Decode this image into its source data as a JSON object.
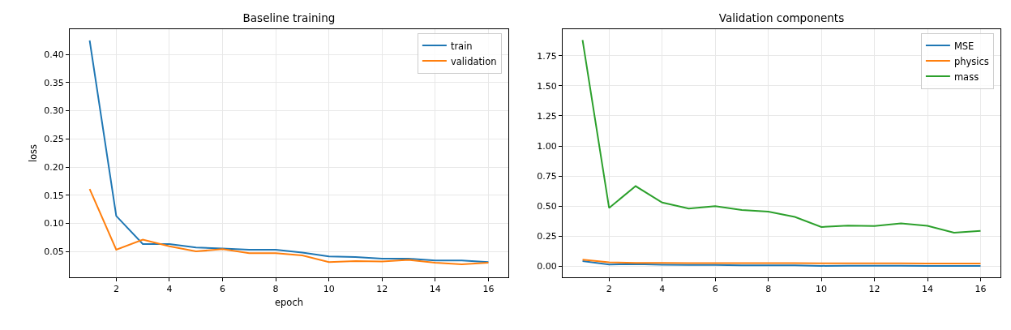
{
  "chart_data": [
    {
      "type": "line",
      "title": "Baseline training",
      "xlabel": "epoch",
      "ylabel": "loss",
      "x": [
        1,
        2,
        3,
        4,
        5,
        6,
        7,
        8,
        9,
        10,
        11,
        12,
        13,
        14,
        15,
        16
      ],
      "xlim": [
        0.25,
        16.75
      ],
      "xticks": [
        2,
        4,
        6,
        8,
        10,
        12,
        14,
        16
      ],
      "ylim": [
        0.004,
        0.445
      ],
      "yticks": [
        0.05,
        {
          "value": 0.1,
          "label": "0.10"
        },
        0.15,
        {
          "value": 0.2,
          "label": "0.20"
        },
        0.25,
        {
          "value": 0.3,
          "label": "0.30"
        },
        0.35,
        {
          "value": 0.4,
          "label": "0.40"
        }
      ],
      "grid": true,
      "legend": "top right",
      "marker": "none",
      "line_style": "solid",
      "series": [
        {
          "name": "train",
          "color": "#1f77b4",
          "values": [
            0.425,
            0.113,
            0.063,
            0.063,
            0.057,
            0.055,
            0.053,
            0.053,
            0.048,
            0.041,
            0.04,
            0.037,
            0.037,
            0.034,
            0.034,
            0.031
          ]
        },
        {
          "name": "validation",
          "color": "#ff7f0e",
          "values": [
            0.161,
            0.053,
            0.071,
            0.059,
            0.05,
            0.054,
            0.047,
            0.047,
            0.043,
            0.031,
            0.033,
            0.032,
            0.035,
            0.03,
            0.027,
            0.03
          ]
        }
      ]
    },
    {
      "type": "line",
      "title": "Validation components",
      "x": [
        1,
        2,
        3,
        4,
        5,
        6,
        7,
        8,
        9,
        10,
        11,
        12,
        13,
        14,
        15,
        16
      ],
      "xlim": [
        0.25,
        16.75
      ],
      "xticks": [
        2,
        4,
        6,
        8,
        10,
        12,
        14,
        16
      ],
      "ylim": [
        -0.09,
        1.97
      ],
      "yticks": [
        {
          "value": 0,
          "label": "0.00"
        },
        {
          "value": 0.25,
          "label": "0.25"
        },
        {
          "value": 0.5,
          "label": "0.50"
        },
        {
          "value": 0.75,
          "label": "0.75"
        },
        {
          "value": 1,
          "label": "1.00"
        },
        {
          "value": 1.25,
          "label": "1.25"
        },
        {
          "value": 1.5,
          "label": "1.50"
        },
        {
          "value": 1.75,
          "label": "1.75"
        }
      ],
      "grid": true,
      "legend": "top right",
      "marker": "none",
      "line_style": "solid",
      "series": [
        {
          "name": "MSE",
          "color": "#1f77b4",
          "values": [
            0.045,
            0.016,
            0.02,
            0.015,
            0.012,
            0.013,
            0.01,
            0.01,
            0.009,
            0.005,
            0.006,
            0.006,
            0.006,
            0.005,
            0.005,
            0.005
          ]
        },
        {
          "name": "physics",
          "color": "#ff7f0e",
          "values": [
            0.057,
            0.034,
            0.03,
            0.03,
            0.028,
            0.028,
            0.027,
            0.027,
            0.027,
            0.026,
            0.026,
            0.026,
            0.026,
            0.025,
            0.025,
            0.025
          ]
        },
        {
          "name": "mass",
          "color": "#2ca02c",
          "values": [
            1.88,
            0.486,
            0.667,
            0.531,
            0.481,
            0.501,
            0.468,
            0.456,
            0.411,
            0.328,
            0.339,
            0.335,
            0.357,
            0.337,
            0.28,
            0.296
          ]
        }
      ]
    }
  ]
}
